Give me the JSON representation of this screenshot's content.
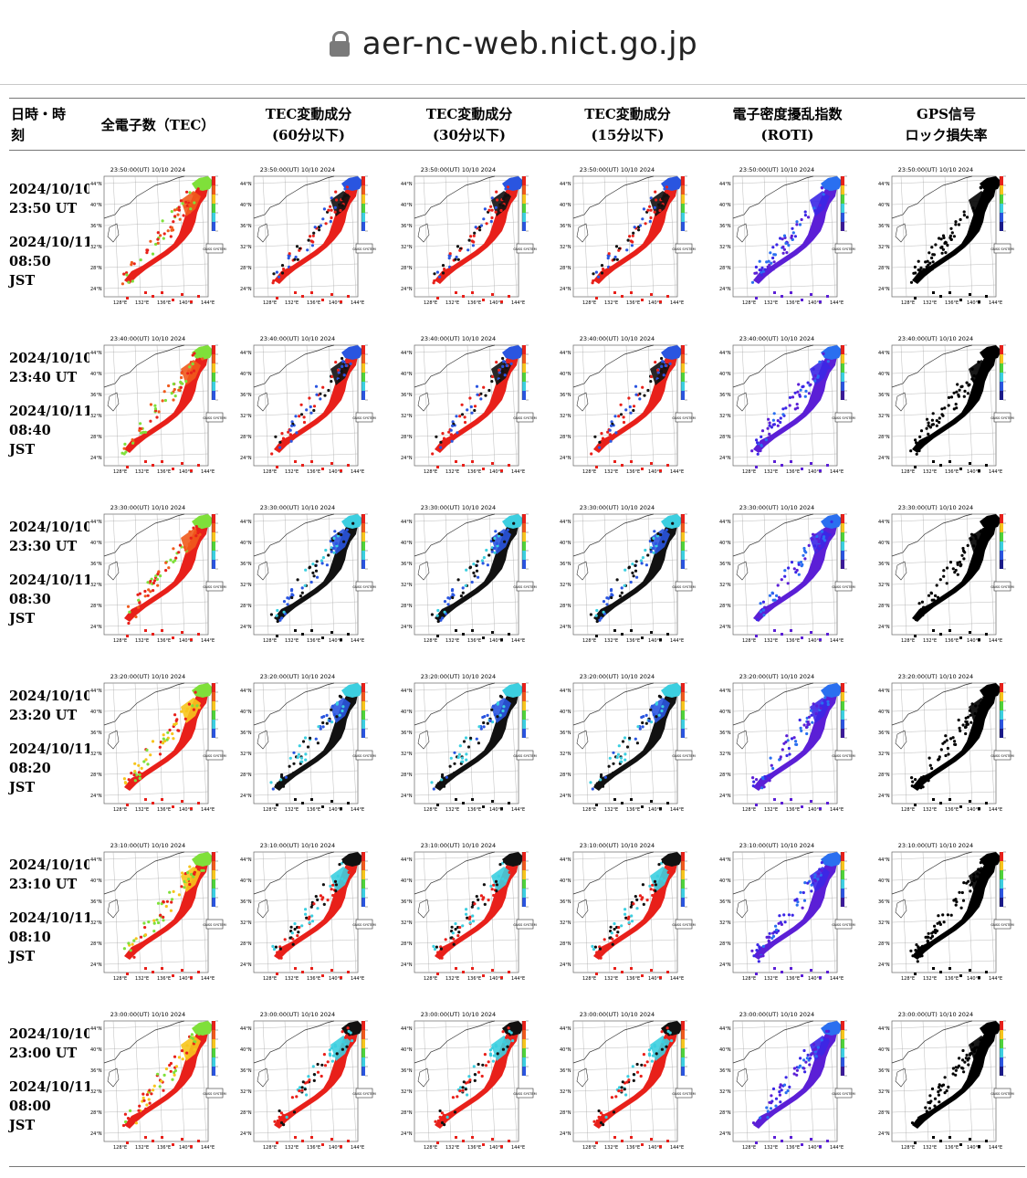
{
  "browser": {
    "url": "aer-nc-web.nict.go.jp",
    "lock_icon": "lock-icon"
  },
  "table": {
    "headers": [
      {
        "line1": "日時・時",
        "line2": "刻"
      },
      {
        "line1": "全電子数（TEC）",
        "line2": ""
      },
      {
        "line1": "TEC変動成分",
        "line2": "(60分以下)"
      },
      {
        "line1": "TEC変動成分",
        "line2": "(30分以下)"
      },
      {
        "line1": "TEC変動成分",
        "line2": "(15分以下)"
      },
      {
        "line1": "電子密度擾乱指数",
        "line2": "(ROTI)"
      },
      {
        "line1": "GPS信号",
        "line2": "ロック損失率"
      }
    ],
    "rows": [
      {
        "ut_date": "2024/10/10",
        "ut_time": "23:50 UT",
        "jst_date": "2024/10/11",
        "jst_time": "08:50",
        "jst": "JST",
        "map_title": "23:50:00(UT) 10/10 2024"
      },
      {
        "ut_date": "2024/10/10",
        "ut_time": "23:40 UT",
        "jst_date": "2024/10/11",
        "jst_time": "08:40",
        "jst": "JST",
        "map_title": "23:40:00(UT) 10/10 2024"
      },
      {
        "ut_date": "2024/10/10",
        "ut_time": "23:30 UT",
        "jst_date": "2024/10/11",
        "jst_time": "08:30",
        "jst": "JST",
        "map_title": "23:30:00(UT) 10/10 2024"
      },
      {
        "ut_date": "2024/10/10",
        "ut_time": "23:20 UT",
        "jst_date": "2024/10/11",
        "jst_time": "08:20",
        "jst": "JST",
        "map_title": "23:20:00(UT) 10/10 2024"
      },
      {
        "ut_date": "2024/10/10",
        "ut_time": "23:10 UT",
        "jst_date": "2024/10/11",
        "jst_time": "08:10",
        "jst": "JST",
        "map_title": "23:10:00(UT) 10/10 2024"
      },
      {
        "ut_date": "2024/10/10",
        "ut_time": "23:00 UT",
        "jst_date": "2024/10/11",
        "jst_time": "08:00",
        "jst": "JST",
        "map_title": "23:00:00(UT) 10/10 2024"
      }
    ],
    "map_axis": {
      "lat_labels": [
        "44°N",
        "40°N",
        "36°N",
        "32°N",
        "28°N",
        "24°N"
      ],
      "lon_labels": [
        "128°E",
        "132°E",
        "136°E",
        "140°E",
        "144°E"
      ],
      "geonet_label": "GNSS SYSTEM"
    },
    "colors": {
      "tec": [
        "#e8201a",
        "#f05a1c",
        "#f7c51d",
        "#aee22a",
        "#4fd33b"
      ],
      "var60": [
        "#e8201a",
        "#111111",
        "#2a55e0",
        "#3ccfe0",
        "#e8201a"
      ],
      "roti": [
        "#5b1fd6",
        "#3b27e6",
        "#2a6ff0",
        "#23c4f0"
      ],
      "lock": [
        "#000000"
      ]
    }
  }
}
